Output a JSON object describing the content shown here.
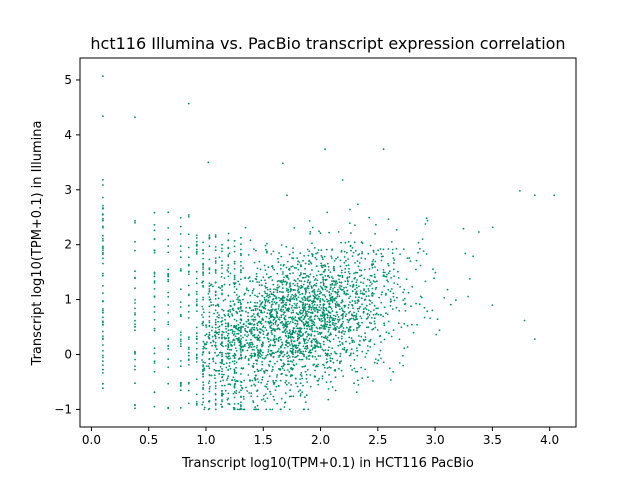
{
  "chart_data": {
    "type": "scatter",
    "title": "hct116 Illumina vs. PacBio transcript expression correlation",
    "xlabel": "Transcript log10(TPM+0.1) in HCT116 PacBio",
    "ylabel": "Transcript log10(TPM+0.1) in Illumina",
    "xlim": [
      -0.1,
      4.23
    ],
    "ylim": [
      -1.32,
      5.4
    ],
    "xticks": [
      0.0,
      0.5,
      1.0,
      1.5,
      2.0,
      2.5,
      3.0,
      3.5,
      4.0
    ],
    "xtick_labels": [
      "0.0",
      "0.5",
      "1.0",
      "1.5",
      "2.0",
      "2.5",
      "3.0",
      "3.5",
      "4.0"
    ],
    "yticks": [
      -1,
      0,
      1,
      2,
      3,
      4,
      5
    ],
    "ytick_labels": [
      "−1",
      "0",
      "1",
      "2",
      "3",
      "4",
      "5"
    ],
    "grid": false,
    "marker_color": "#008f6b",
    "marker_shape": "small dot",
    "points_note_x_columns": [
      0.1,
      0.38,
      0.55,
      0.67,
      0.78,
      0.85
    ],
    "highlighted_points": [
      {
        "x": 0.1,
        "y": 5.07
      },
      {
        "x": 0.1,
        "y": 4.34
      },
      {
        "x": 0.38,
        "y": 4.32
      },
      {
        "x": 0.85,
        "y": 4.57
      },
      {
        "x": 2.04,
        "y": 3.74
      },
      {
        "x": 2.55,
        "y": 3.74
      },
      {
        "x": 1.67,
        "y": 3.48
      },
      {
        "x": 1.02,
        "y": 3.5
      },
      {
        "x": 3.74,
        "y": 2.98
      },
      {
        "x": 3.87,
        "y": 2.9
      },
      {
        "x": 4.04,
        "y": 2.9
      },
      {
        "x": 3.78,
        "y": 0.62
      },
      {
        "x": 3.87,
        "y": 0.28
      },
      {
        "x": 3.5,
        "y": 0.9
      }
    ],
    "density": {
      "center_x": 1.75,
      "center_y": 0.85,
      "x_range": [
        0.1,
        4.04
      ],
      "y_range": [
        -1.0,
        5.07
      ]
    }
  }
}
